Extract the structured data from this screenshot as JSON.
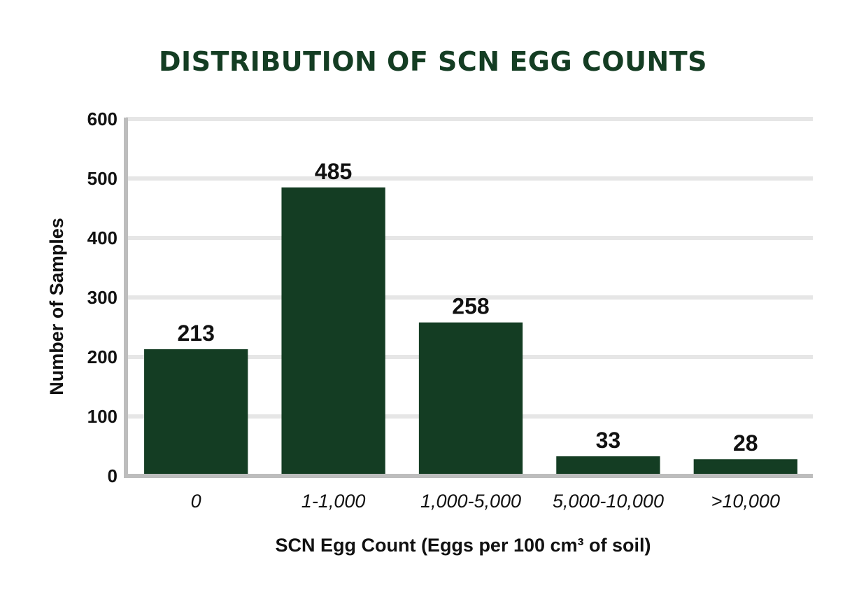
{
  "chart_data": {
    "type": "bar",
    "title": "DISTRIBUTION OF SCN EGG COUNTS",
    "xlabel": "SCN Egg Count (Eggs per 100 cm³ of soil)",
    "ylabel": "Number of Samples",
    "categories": [
      "0",
      "1-1,000",
      "1,000-5,000",
      "5,000-10,000",
      ">10,000"
    ],
    "values": [
      213,
      485,
      258,
      33,
      28
    ],
    "data_labels": [
      "213",
      "485",
      "258",
      "33",
      "28"
    ],
    "ylim": [
      0,
      600
    ],
    "yticks": [
      "0",
      "100",
      "200",
      "300",
      "400",
      "500",
      "600"
    ],
    "grid": true,
    "bar_color": "#143d23",
    "title_color": "#143d23",
    "grid_color": "#e6e6e6",
    "axis_color": "#bdbdbd"
  }
}
